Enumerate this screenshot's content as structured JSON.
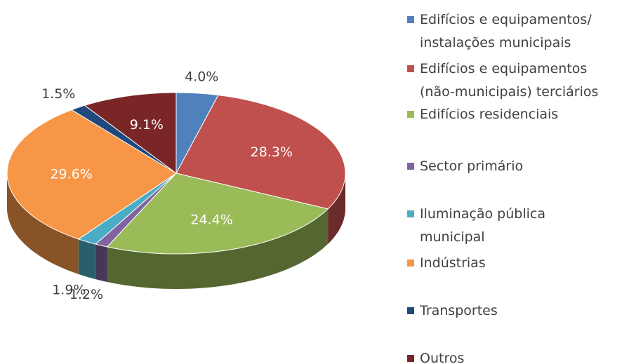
{
  "chart_data": {
    "type": "pie",
    "categories": [
      "Edifícios e equipamentos/\ninstalações municipais",
      "Edifícios e equipamentos\n(não-municipais) terciários",
      "Edifícios residenciais",
      "Sector primário",
      "Iluminação pública\nmunicipal",
      "Indústrias",
      "Transportes",
      "Outros"
    ],
    "values": [
      4.0,
      28.3,
      24.4,
      1.2,
      1.9,
      29.6,
      1.5,
      9.1
    ],
    "value_labels": [
      "4.0%",
      "28.3%",
      "24.4%",
      "1.2%",
      "1.9%",
      "29.6%",
      "1.5%",
      "9.1%"
    ],
    "colors": [
      "#4f81bd",
      "#c0504d",
      "#9bbb59",
      "#8064a2",
      "#4bacc6",
      "#f79646",
      "#1f497d",
      "#7b2626"
    ],
    "legend": "right"
  }
}
